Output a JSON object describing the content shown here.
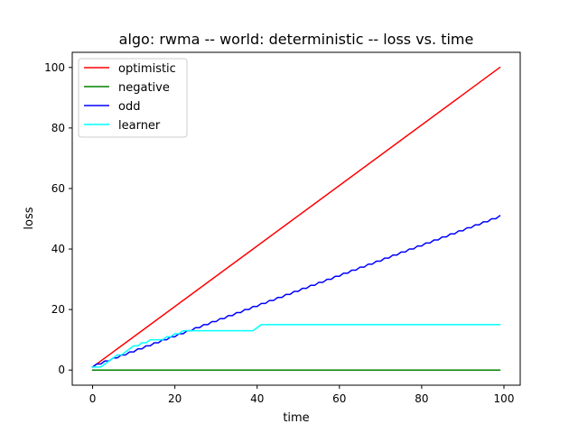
{
  "chart_data": {
    "type": "line",
    "title": "algo: rwma -- world: deterministic -- loss vs. time",
    "xlabel": "time",
    "ylabel": "loss",
    "xlim": [
      -4.95,
      103.95
    ],
    "ylim": [
      -5,
      105
    ],
    "xticks": [
      0,
      20,
      40,
      60,
      80,
      100
    ],
    "yticks": [
      0,
      20,
      40,
      60,
      80,
      100
    ],
    "grid": false,
    "legend_position": "top-left",
    "series": [
      {
        "name": "optimistic",
        "color": "#ff0000",
        "x": [
          0,
          99
        ],
        "y": [
          1,
          100
        ]
      },
      {
        "name": "negative",
        "color": "#008000",
        "x": [
          0,
          99
        ],
        "y": [
          0,
          0
        ]
      },
      {
        "name": "odd",
        "color": "#0000ff",
        "pattern": "staircase: loss rises by 1 on every other step",
        "x": [
          0,
          99
        ],
        "y": [
          1,
          50
        ]
      },
      {
        "name": "learner",
        "color": "#00ffff",
        "x": [
          0,
          2,
          3,
          4,
          5,
          6,
          7,
          8,
          9,
          10,
          11,
          12,
          13,
          14,
          17,
          18,
          19,
          20,
          21,
          22,
          39,
          41,
          99
        ],
        "y": [
          1,
          1,
          2,
          3,
          4,
          5,
          5,
          6,
          7,
          8,
          8,
          9,
          9,
          10,
          10,
          11,
          11,
          12,
          12,
          13,
          13,
          15,
          15
        ]
      }
    ]
  }
}
